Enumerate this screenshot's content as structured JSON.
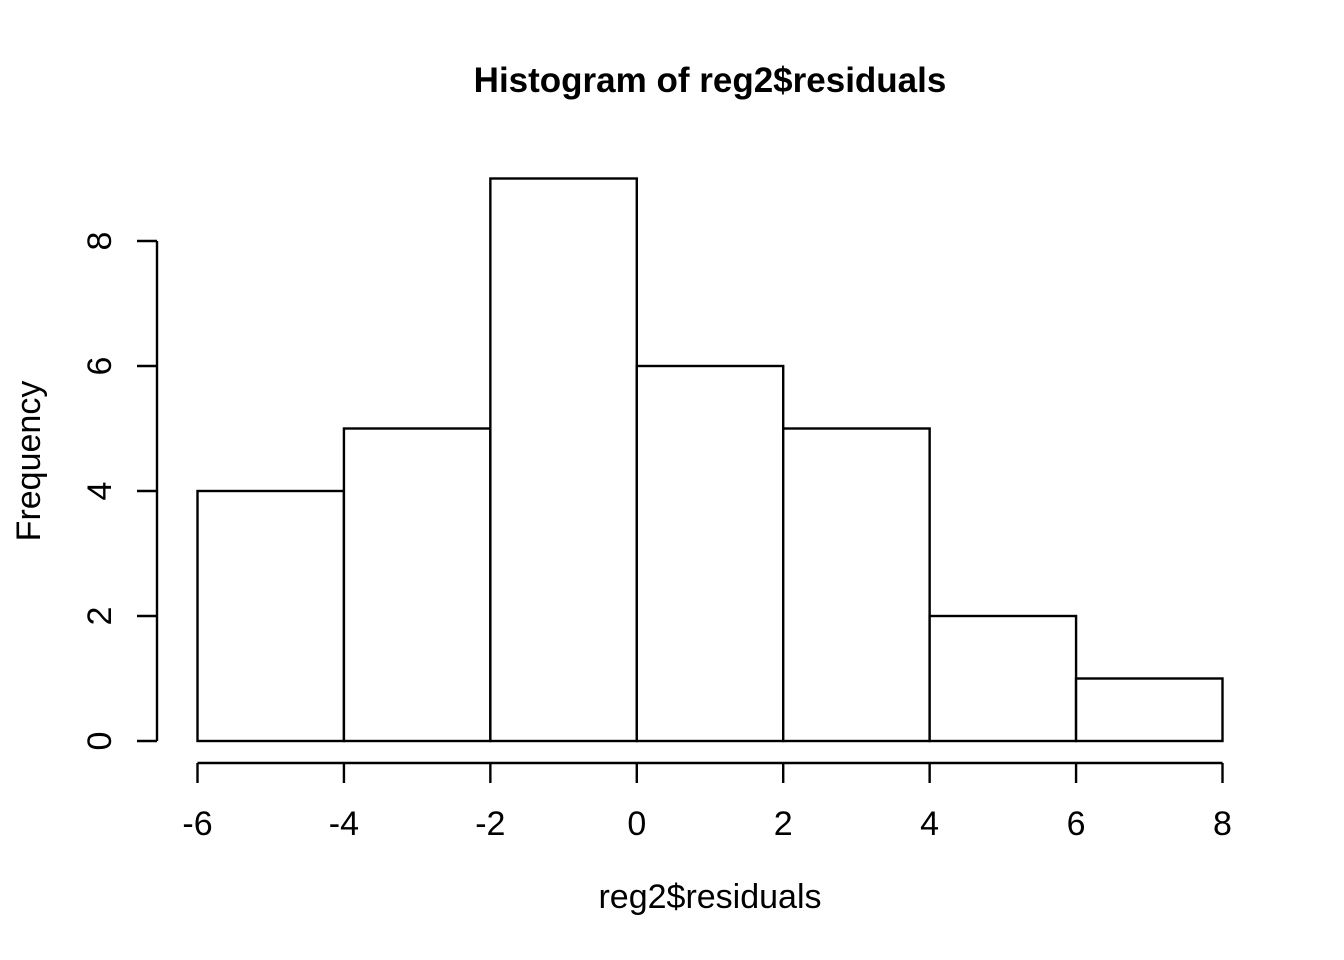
{
  "chart_data": {
    "type": "bar",
    "chart_kind": "histogram",
    "title": "Histogram of reg2$residuals",
    "xlabel": "reg2$residuals",
    "ylabel": "Frequency",
    "bin_edges": [
      -6,
      -4,
      -2,
      0,
      2,
      4,
      6,
      8
    ],
    "counts": [
      4,
      5,
      9,
      6,
      5,
      2,
      1
    ],
    "x_ticks": [
      -6,
      -4,
      -2,
      0,
      2,
      4,
      6,
      8
    ],
    "y_ticks": [
      0,
      2,
      4,
      6,
      8
    ],
    "xlim": [
      -6,
      8
    ],
    "ylim": [
      0,
      9
    ],
    "grid": false,
    "legend": false,
    "colors": {
      "bar_fill": "#ffffff",
      "bar_stroke": "#000000",
      "axis": "#000000",
      "text": "#000000",
      "background": "#ffffff"
    }
  }
}
